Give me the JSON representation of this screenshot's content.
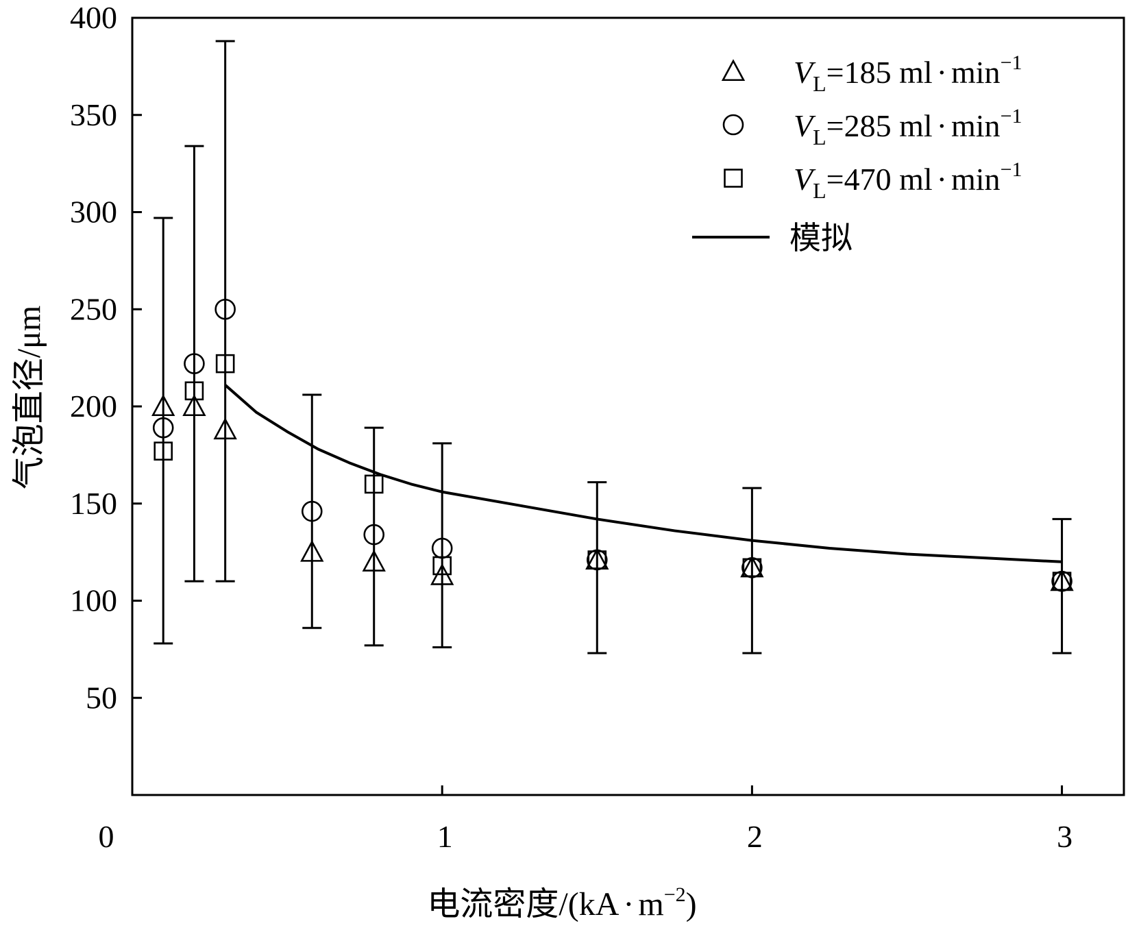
{
  "chart_data": {
    "type": "scatter",
    "xlabel": "电流密度/(kA·m⁻²)",
    "xlabel_parts": {
      "main": "电流密度/(kA",
      "dot": "·",
      "m": "m",
      "sup": "−2",
      "close": ")"
    },
    "ylabel": "气泡直径/μm",
    "xlim": [
      0,
      3.2
    ],
    "ylim": [
      0,
      400
    ],
    "x_ticks": [
      0,
      1,
      2,
      3
    ],
    "x_tick_labels": [
      "0",
      "1",
      "2",
      "3"
    ],
    "y_ticks": [
      50,
      100,
      150,
      200,
      250,
      300,
      350,
      400
    ],
    "y_tick_labels": [
      "50",
      "100",
      "150",
      "200",
      "250",
      "300",
      "350",
      "400"
    ],
    "x_zero_label": "0",
    "legend_position": "top-right",
    "grid": false,
    "series": [
      {
        "name": "VL=185 ml·min−1",
        "label_parts": {
          "var": "V",
          "sub": "L",
          "text": "=185 ml",
          "dot": "·",
          "unit": "min",
          "sup": "−1"
        },
        "marker": "triangle",
        "x": [
          0.1,
          0.2,
          0.3,
          0.58,
          0.78,
          1.0,
          1.5,
          2.0,
          3.0
        ],
        "y": [
          200,
          200,
          188,
          125,
          120,
          113,
          121,
          117,
          110
        ]
      },
      {
        "name": "VL=285 ml·min−1",
        "label_parts": {
          "var": "V",
          "sub": "L",
          "text": "=285 ml",
          "dot": "·",
          "unit": "min",
          "sup": "−1"
        },
        "marker": "circle",
        "x": [
          0.1,
          0.2,
          0.3,
          0.58,
          0.78,
          1.0,
          1.5,
          2.0,
          3.0
        ],
        "y": [
          189,
          222,
          250,
          146,
          134,
          127,
          121,
          117,
          110
        ]
      },
      {
        "name": "VL=470 ml·min−1",
        "label_parts": {
          "var": "V",
          "sub": "L",
          "text": "=470 ml",
          "dot": "·",
          "unit": "min",
          "sup": "−1"
        },
        "marker": "square",
        "x": [
          0.1,
          0.2,
          0.3,
          0.78,
          1.0,
          1.5,
          2.0,
          3.0
        ],
        "y": [
          177,
          208,
          222,
          160,
          118,
          121,
          117,
          110
        ]
      },
      {
        "name": "模拟",
        "marker": "line",
        "x": [
          0.3,
          0.4,
          0.5,
          0.6,
          0.7,
          0.8,
          0.9,
          1.0,
          1.25,
          1.5,
          1.75,
          2.0,
          2.25,
          2.5,
          2.75,
          3.0
        ],
        "y": [
          211,
          197,
          187,
          178,
          171,
          165,
          160,
          156,
          149,
          142,
          136,
          131,
          127,
          124,
          122,
          120
        ]
      }
    ],
    "error_bars": {
      "x": [
        0.1,
        0.2,
        0.3,
        0.58,
        0.78,
        1.0,
        1.5,
        2.0,
        3.0
      ],
      "lower": [
        78,
        110,
        110,
        86,
        77,
        76,
        73,
        73,
        73
      ],
      "upper": [
        297,
        334,
        388,
        206,
        189,
        181,
        161,
        158,
        142
      ]
    }
  }
}
